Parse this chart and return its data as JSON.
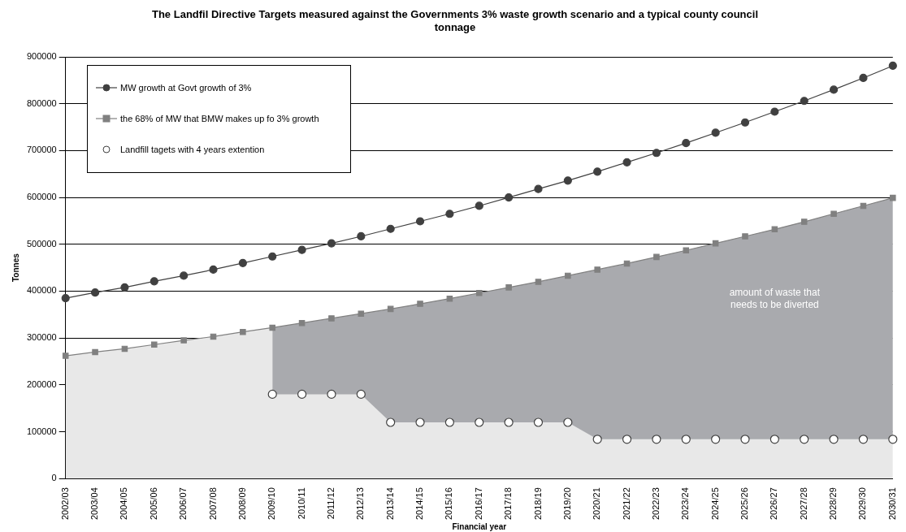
{
  "chart_data": {
    "type": "line",
    "title": "The Landfil Directive Targets measured against the Governments 3% waste growth scenario and a typical county council tonnage",
    "xlabel": "Financial year",
    "ylabel": "Tonnes",
    "categories": [
      "2002/03",
      "2003/04",
      "2004/05",
      "2005/06",
      "2006/07",
      "2007/08",
      "2008/09",
      "2009/10",
      "2010/11",
      "2011/12",
      "2012/13",
      "2013/14",
      "2014/15",
      "2015/16",
      "2016/17",
      "2017/18",
      "2018/19",
      "2019/20",
      "2020/21",
      "2021/22",
      "2022/23",
      "2023/24",
      "2024/25",
      "2025/26",
      "2026/27",
      "2027/28",
      "2028/29",
      "2029/30",
      "2030/31"
    ],
    "series": [
      {
        "name": "MW growth at Govt growth of 3%",
        "type": "line",
        "marker": "circle",
        "color": "#404040",
        "values": [
          385000,
          397000,
          408000,
          421000,
          433000,
          446000,
          460000,
          474000,
          488000,
          502000,
          517000,
          533000,
          549000,
          565000,
          582000,
          600000,
          618000,
          636000,
          655000,
          675000,
          695000,
          716000,
          738000,
          760000,
          783000,
          806000,
          830000,
          855000,
          881000
        ]
      },
      {
        "name": "the 68% of MW that BMW makes up fo 3% growth",
        "type": "area",
        "marker": "square",
        "color": "#808080",
        "values": [
          262000,
          270000,
          277000,
          286000,
          295000,
          303000,
          313000,
          322000,
          332000,
          342000,
          352000,
          362000,
          373000,
          384000,
          396000,
          408000,
          420000,
          433000,
          446000,
          459000,
          473000,
          487000,
          502000,
          517000,
          532000,
          548000,
          565000,
          582000,
          599000
        ],
        "lower": [
          null,
          null,
          null,
          null,
          null,
          null,
          null,
          180000,
          180000,
          180000,
          180000,
          120000,
          120000,
          120000,
          120000,
          120000,
          120000,
          120000,
          84000,
          84000,
          84000,
          84000,
          84000,
          84000,
          84000,
          84000,
          84000,
          84000,
          84000
        ],
        "upper": [
          null,
          null,
          null,
          null,
          null,
          null,
          null,
          322000,
          332000,
          342000,
          352000,
          362000,
          373000,
          384000,
          396000,
          408000,
          420000,
          433000,
          446000,
          459000,
          473000,
          487000,
          502000,
          517000,
          532000,
          548000,
          565000,
          582000,
          599000
        ]
      },
      {
        "name": "Landfill tagets with 4 years extention",
        "type": "scatter",
        "marker": "circle",
        "color": "#404040",
        "values": [
          null,
          null,
          null,
          null,
          null,
          null,
          null,
          180000,
          180000,
          180000,
          180000,
          120000,
          120000,
          120000,
          120000,
          120000,
          120000,
          120000,
          84000,
          84000,
          84000,
          84000,
          84000,
          84000,
          84000,
          84000,
          84000,
          84000,
          84000
        ]
      }
    ],
    "annotations": [
      "amount of waste that needs to be diverted"
    ],
    "ylim": [
      0,
      900000
    ],
    "yticks": [
      0,
      100000,
      200000,
      300000,
      400000,
      500000,
      600000,
      700000,
      800000,
      900000
    ],
    "grid": "y",
    "legend": "top left"
  }
}
